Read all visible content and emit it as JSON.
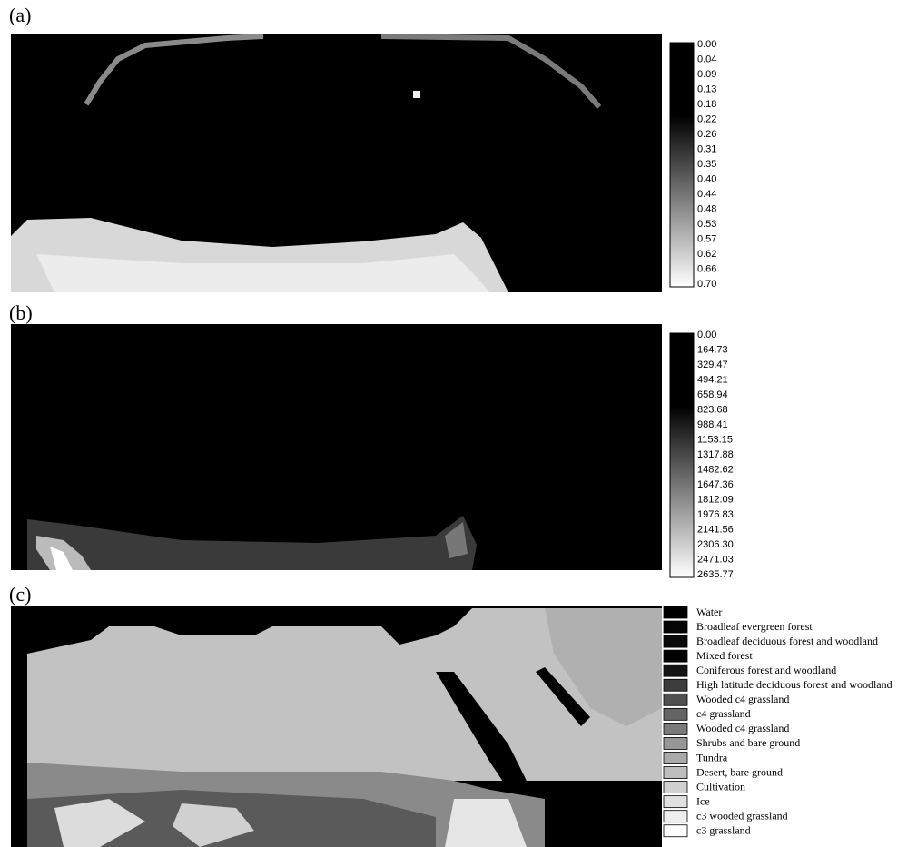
{
  "panels": [
    {
      "label": "(a)",
      "colorbar": [
        "0.00",
        "0.04",
        "0.09",
        "0.13",
        "0.18",
        "0.22",
        "0.26",
        "0.31",
        "0.35",
        "0.40",
        "0.44",
        "0.48",
        "0.53",
        "0.57",
        "0.62",
        "0.66",
        "0.70"
      ]
    },
    {
      "label": "(b)",
      "colorbar": [
        "0.00",
        "164.73",
        "329.47",
        "494.21",
        "658.94",
        "823.68",
        "988.41",
        "1153.15",
        "1317.88",
        "1482.62",
        "1647.36",
        "1812.09",
        "1976.83",
        "2141.56",
        "2306.30",
        "2471.03",
        "2635.77"
      ]
    },
    {
      "label": "(c)",
      "legend": [
        {
          "label": "Water",
          "color": "#000000"
        },
        {
          "label": "Broadleaf evergreen forest",
          "color": "#050505"
        },
        {
          "label": "Broadleaf deciduous forest and woodland",
          "color": "#0a0a0a"
        },
        {
          "label": "Mixed forest",
          "color": "#000000"
        },
        {
          "label": "Coniferous forest and woodland",
          "color": "#141414"
        },
        {
          "label": "High latitude deciduous forest and woodland",
          "color": "#3c3c3c"
        },
        {
          "label": "Wooded c4 grassland",
          "color": "#505050"
        },
        {
          "label": "c4 grassland",
          "color": "#646464"
        },
        {
          "label": "Wooded c4 grassland",
          "color": "#7a7a7a"
        },
        {
          "label": "Shrubs and bare ground",
          "color": "#969696"
        },
        {
          "label": "Tundra",
          "color": "#aaaaaa"
        },
        {
          "label": "Desert, bare ground",
          "color": "#bebebe"
        },
        {
          "label": "Cultivation",
          "color": "#d0d0d0"
        },
        {
          "label": "Ice",
          "color": "#e0e0e0"
        },
        {
          "label": "c3 wooded grassland",
          "color": "#eeeeee"
        },
        {
          "label": "c3 grassland",
          "color": "#ffffff"
        }
      ]
    }
  ]
}
